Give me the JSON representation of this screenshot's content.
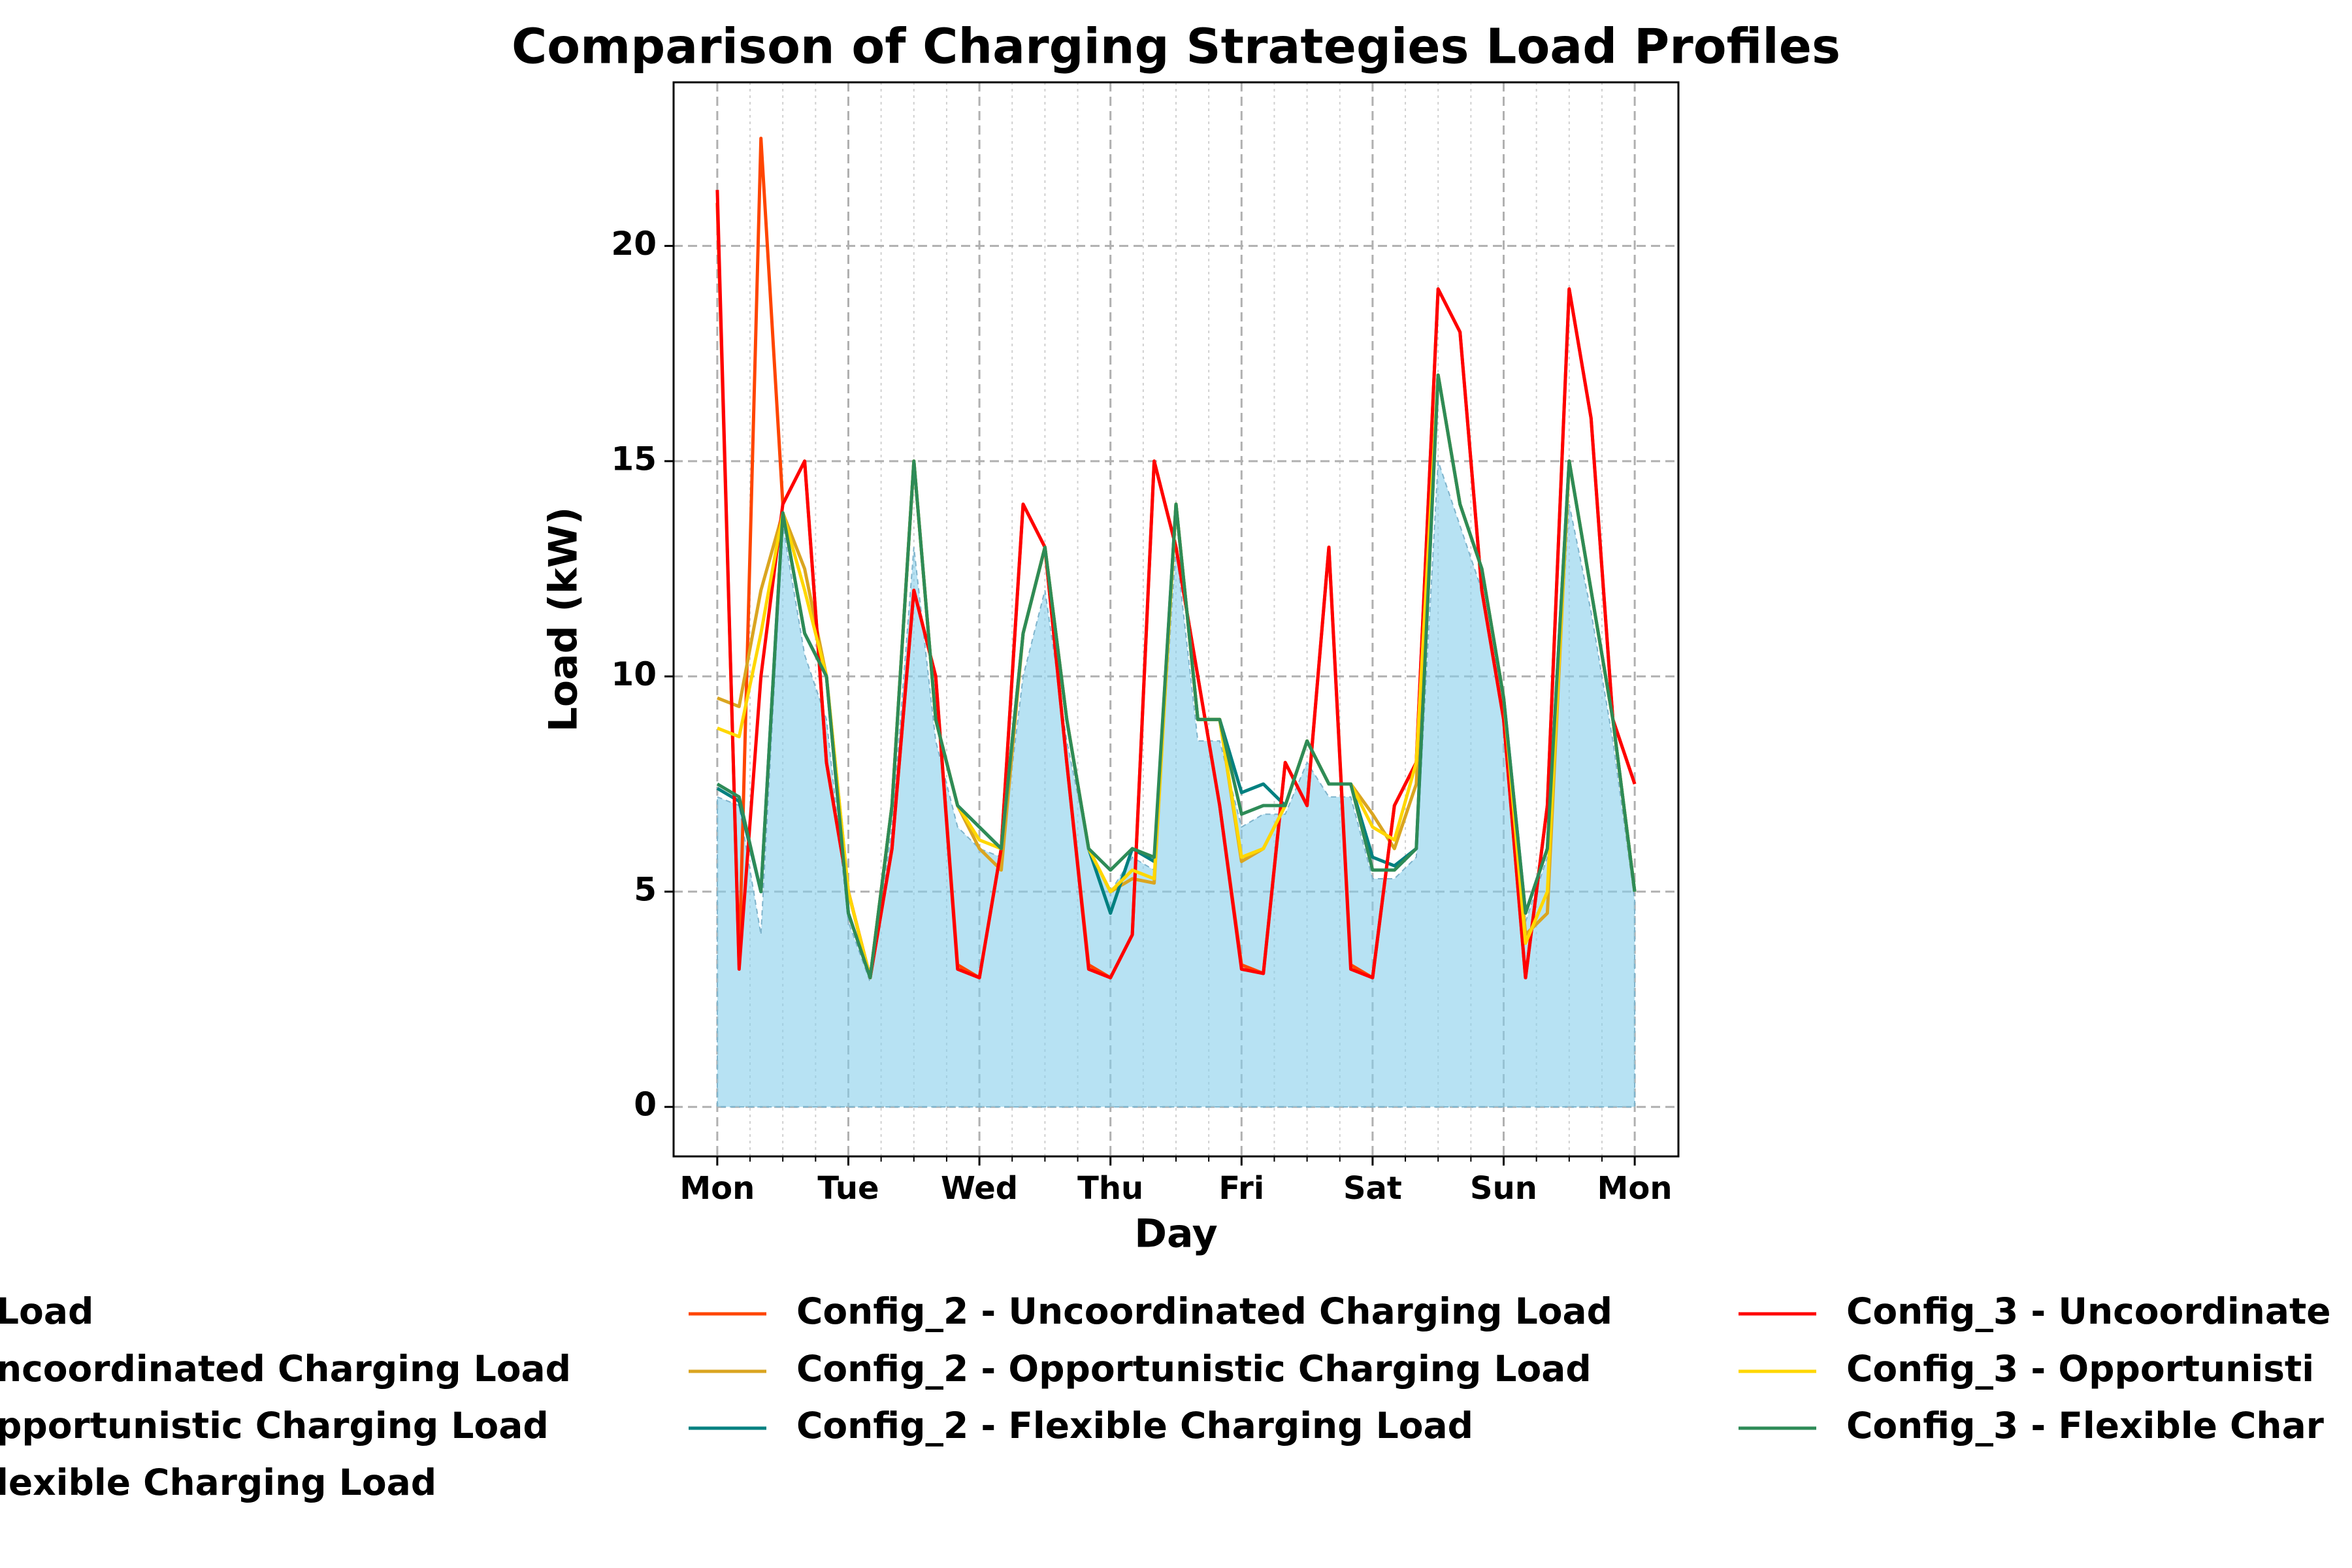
{
  "chart_data": {
    "type": "line",
    "title": "Comparison of Charging Strategies Load Profiles",
    "x_label": "Day",
    "y_label": "Load (kW)",
    "x": [
      0,
      4,
      8,
      12,
      16,
      20,
      24,
      28,
      32,
      36,
      40,
      44,
      48,
      52,
      56,
      60,
      64,
      68,
      72,
      76,
      80,
      84,
      88,
      92,
      96,
      100,
      104,
      108,
      112,
      116,
      120,
      124,
      128,
      132,
      136,
      140,
      144,
      148,
      152,
      156,
      160,
      164,
      168
    ],
    "xlim": [
      -8,
      176
    ],
    "ylim": [
      -1.15,
      23.8
    ],
    "xticks": [
      {
        "value": 0,
        "label": "Mon"
      },
      {
        "value": 24,
        "label": "Tue"
      },
      {
        "value": 48,
        "label": "Wed"
      },
      {
        "value": 72,
        "label": "Thu"
      },
      {
        "value": 96,
        "label": "Fri"
      },
      {
        "value": 120,
        "label": "Sat"
      },
      {
        "value": 144,
        "label": "Sun"
      },
      {
        "value": 168,
        "label": "Mon"
      }
    ],
    "xticks_minor": [
      6,
      12,
      18,
      30,
      36,
      42,
      54,
      60,
      66,
      78,
      84,
      90,
      102,
      108,
      114,
      126,
      132,
      138,
      150,
      156,
      162
    ],
    "yticks": [
      0,
      5,
      10,
      15,
      20
    ],
    "grid": true,
    "series": [
      {
        "name": "Load",
        "type": "area",
        "color": "#87ceeb",
        "values": [
          7.2,
          7,
          4,
          13.5,
          10.5,
          9,
          4.3,
          2.9,
          6.5,
          13,
          8.5,
          6.5,
          6,
          5.8,
          10,
          12,
          8.5,
          6,
          5,
          5.8,
          5.5,
          13,
          8.5,
          8.5,
          6.5,
          6.8,
          6.8,
          8,
          7.2,
          7.2,
          5.3,
          5.3,
          5.8,
          15,
          13.5,
          12,
          9.3,
          4.3,
          5.8,
          14,
          11.5,
          8.5,
          4.8
        ]
      },
      {
        "name": "ncoordinated Charging Load"
      },
      {
        "name": "pportunistic Charging Load"
      },
      {
        "name": "lexible Charging Load"
      },
      {
        "name": "Config_2 - Uncoordinated Charging Load",
        "color": "#ff4500",
        "values": [
          21,
          3.3,
          22.5,
          14,
          15,
          8,
          5,
          3,
          6,
          12,
          10,
          3.3,
          3,
          6,
          14,
          13,
          8,
          3.3,
          3,
          4,
          15,
          13,
          10,
          7,
          3.3,
          3.1,
          8,
          7,
          13,
          3.3,
          3,
          7,
          8,
          19,
          18,
          12,
          9,
          3,
          7,
          19,
          16,
          9,
          7.5
        ]
      },
      {
        "name": "Config_2 - Opportunistic Charging Load",
        "color": "#daa520",
        "values": [
          9.5,
          9.3,
          12,
          13.8,
          12.5,
          10,
          5,
          3,
          7,
          15,
          9,
          7,
          6,
          5.5,
          11,
          13,
          9,
          6,
          5,
          5.3,
          5.2,
          14,
          9,
          9,
          5.7,
          6,
          7,
          8.5,
          7.5,
          7.5,
          6.8,
          6,
          7.5,
          17,
          14,
          12.5,
          9.5,
          4,
          4.5,
          15,
          12,
          9,
          5
        ]
      },
      {
        "name": "Config_2 - Flexible Charging Load",
        "color": "#008080",
        "values": [
          7.4,
          7.1,
          5,
          13.8,
          11,
          10,
          4.5,
          3,
          7,
          15,
          9,
          7,
          6.5,
          6,
          11,
          13,
          9,
          6,
          4.5,
          6,
          5.7,
          14,
          9,
          9,
          7.3,
          7.5,
          7,
          8.5,
          7.5,
          7.5,
          5.8,
          5.6,
          6,
          17,
          14,
          12.5,
          9.5,
          4.5,
          6,
          15,
          12,
          9,
          5
        ]
      },
      {
        "name": "Config_3 - Uncoordinate",
        "color": "#ff0000",
        "values": [
          21.3,
          3.2,
          10,
          14,
          15,
          8,
          5,
          3,
          6,
          12,
          10,
          3.2,
          3,
          6,
          14,
          13,
          8,
          3.2,
          3,
          4,
          15,
          13,
          10,
          7,
          3.2,
          3.1,
          8,
          7,
          13,
          3.2,
          3,
          7,
          8,
          19,
          18,
          12,
          9,
          3,
          7,
          19,
          16,
          9,
          7.5
        ]
      },
      {
        "name": "Config_3 - Opportunisti",
        "color": "#ffd700",
        "values": [
          8.8,
          8.6,
          11,
          13.8,
          12,
          10,
          5,
          3,
          7,
          15,
          9,
          7,
          6.2,
          6,
          11,
          13,
          9,
          6,
          5,
          5.5,
          5.3,
          14,
          9,
          9,
          5.8,
          6,
          7,
          8.5,
          7.5,
          7.5,
          6.5,
          6.2,
          8,
          17,
          14,
          12.5,
          9.5,
          3.8,
          5,
          15,
          12,
          9,
          5
        ]
      },
      {
        "name": "Config_3 - Flexible Char",
        "color": "#2e8b57",
        "values": [
          7.5,
          7.2,
          5,
          13.8,
          11,
          10,
          4.5,
          3,
          7,
          15,
          9,
          7,
          6.5,
          6,
          11,
          13,
          9,
          6,
          5.5,
          6,
          5.8,
          14,
          9,
          9,
          6.8,
          7,
          7,
          8.5,
          7.5,
          7.5,
          5.5,
          5.5,
          6,
          17,
          14,
          12.5,
          9.5,
          4.5,
          6,
          15,
          12,
          9,
          5
        ]
      }
    ]
  }
}
